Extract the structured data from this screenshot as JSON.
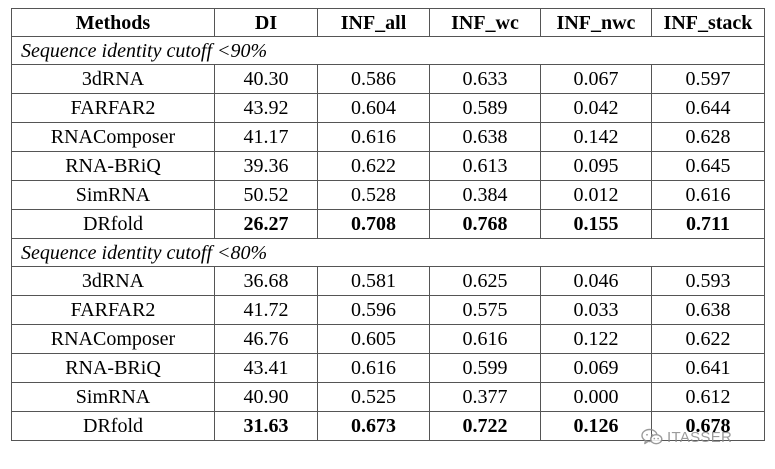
{
  "table": {
    "headers": [
      "Methods",
      "DI",
      "INF_all",
      "INF_wc",
      "INF_nwc",
      "INF_stack"
    ],
    "sections": [
      {
        "label": "Sequence identity cutoff <90%",
        "rows": [
          {
            "method": "3dRNA",
            "values": [
              "40.30",
              "0.586",
              "0.633",
              "0.067",
              "0.597"
            ]
          },
          {
            "method": "FARFAR2",
            "values": [
              "43.92",
              "0.604",
              "0.589",
              "0.042",
              "0.644"
            ]
          },
          {
            "method": "RNAComposer",
            "values": [
              "41.17",
              "0.616",
              "0.638",
              "0.142",
              "0.628"
            ]
          },
          {
            "method": "RNA-BRiQ",
            "values": [
              "39.36",
              "0.622",
              "0.613",
              "0.095",
              "0.645"
            ]
          },
          {
            "method": "SimRNA",
            "values": [
              "50.52",
              "0.528",
              "0.384",
              "0.012",
              "0.616"
            ]
          },
          {
            "method": "DRfold",
            "values": [
              "26.27",
              "0.708",
              "0.768",
              "0.155",
              "0.711"
            ],
            "best": true
          }
        ]
      },
      {
        "label": "Sequence identity cutoff <80%",
        "rows": [
          {
            "method": "3dRNA",
            "values": [
              "36.68",
              "0.581",
              "0.625",
              "0.046",
              "0.593"
            ]
          },
          {
            "method": "FARFAR2",
            "values": [
              "41.72",
              "0.596",
              "0.575",
              "0.033",
              "0.638"
            ]
          },
          {
            "method": "RNAComposer",
            "values": [
              "46.76",
              "0.605",
              "0.616",
              "0.122",
              "0.622"
            ]
          },
          {
            "method": "RNA-BRiQ",
            "values": [
              "43.41",
              "0.616",
              "0.599",
              "0.069",
              "0.641"
            ]
          },
          {
            "method": "SimRNA",
            "values": [
              "40.90",
              "0.525",
              "0.377",
              "0.000",
              "0.612"
            ]
          },
          {
            "method": "DRfold",
            "values": [
              "31.63",
              "0.673",
              "0.722",
              "0.126",
              "0.678"
            ],
            "best": true
          }
        ]
      }
    ]
  },
  "watermark": {
    "icon": "wechat-icon",
    "text": "ITASSER"
  }
}
